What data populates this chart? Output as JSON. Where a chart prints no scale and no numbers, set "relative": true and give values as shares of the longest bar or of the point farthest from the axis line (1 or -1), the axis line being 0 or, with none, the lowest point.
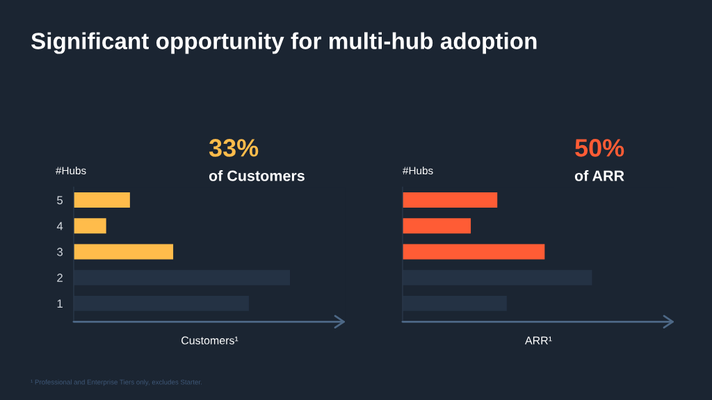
{
  "chart_data": [
    {
      "type": "bar",
      "orientation": "horizontal",
      "relative": true,
      "title": "Significant opportunity for multi-hub adoption",
      "ylabel": "#Hubs",
      "xlabel": "Customers¹",
      "categories": [
        "5",
        "4",
        "3",
        "2",
        "1"
      ],
      "values": [
        0.26,
        0.15,
        0.46,
        1,
        0.81
      ],
      "colors": [
        "#ffbc4b",
        "#ffbc4b",
        "#ffbc4b",
        "#243244",
        "#243244"
      ],
      "tick_labels": "y",
      "annotations": [
        "33%",
        "of Customers",
        "¹ Professional and Enterprise Tiers only, excludes Starter."
      ]
    },
    {
      "type": "bar",
      "orientation": "horizontal",
      "relative": true,
      "ylabel": "#Hubs",
      "xlabel": "ARR¹",
      "categories": [
        null,
        null,
        null,
        null,
        null
      ],
      "values": [
        0.5,
        0.36,
        0.75,
        1,
        0.55
      ],
      "colors": [
        "#ff5c35",
        "#ff5c35",
        "#ff5c35",
        "#243244",
        "#243244"
      ],
      "tick_labels": false,
      "annotations": [
        "50%",
        "of ARR"
      ]
    }
  ]
}
